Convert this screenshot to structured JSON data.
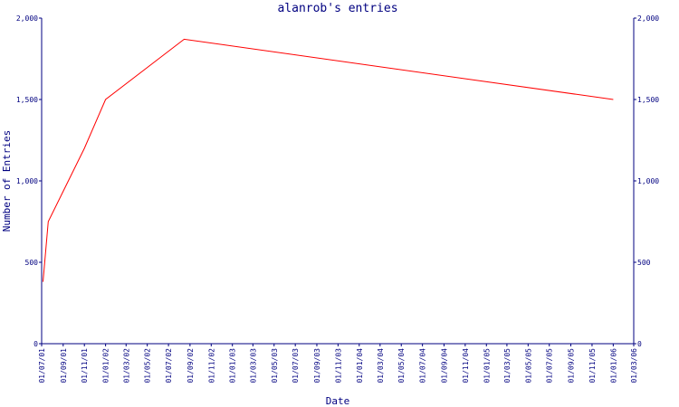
{
  "chart_data": {
    "type": "line",
    "title": "alanrob's entries",
    "xlabel": "Date",
    "ylabel": "Number of Entries",
    "ylim": [
      0,
      2000
    ],
    "y_ticks": [
      0,
      500,
      1000,
      1500,
      2000
    ],
    "y_tick_labels": [
      "0",
      "500",
      "1,000",
      "1,500",
      "2,000"
    ],
    "x_range": [
      "2001-07-01",
      "2006-03-01"
    ],
    "x_ticks": [
      "2001-07-01",
      "2001-09-01",
      "2001-11-01",
      "2002-01-01",
      "2002-03-01",
      "2002-05-01",
      "2002-07-01",
      "2002-09-01",
      "2002-11-01",
      "2003-01-01",
      "2003-03-01",
      "2003-05-01",
      "2003-07-01",
      "2003-09-01",
      "2003-11-01",
      "2004-01-01",
      "2004-03-01",
      "2004-05-01",
      "2004-07-01",
      "2004-09-01",
      "2004-11-01",
      "2005-01-01",
      "2005-03-01",
      "2005-05-01",
      "2005-07-01",
      "2005-09-01",
      "2005-11-01",
      "2006-01-01",
      "2006-03-01"
    ],
    "x_tick_labels": [
      "01/07/01",
      "01/09/01",
      "01/11/01",
      "01/01/02",
      "01/03/02",
      "01/05/02",
      "01/07/02",
      "01/09/02",
      "01/11/02",
      "01/01/03",
      "01/03/03",
      "01/05/03",
      "01/07/03",
      "01/09/03",
      "01/11/03",
      "01/01/04",
      "01/03/04",
      "01/05/04",
      "01/07/04",
      "01/09/04",
      "01/11/04",
      "01/01/05",
      "01/03/05",
      "01/05/05",
      "01/07/05",
      "01/09/05",
      "01/11/05",
      "01/01/06",
      "01/03/06"
    ],
    "series": [
      {
        "color": "#ff0000",
        "x": [
          "2001-07-05",
          "2001-07-20",
          "2001-11-01",
          "2002-01-01",
          "2002-08-15",
          "2006-01-01"
        ],
        "y": [
          380,
          750,
          1200,
          1500,
          1870,
          1500
        ]
      }
    ],
    "grid": false,
    "right_axis": true,
    "colors": {
      "axis": "#000080",
      "line": "#ff0000",
      "background": "#ffffff"
    }
  }
}
